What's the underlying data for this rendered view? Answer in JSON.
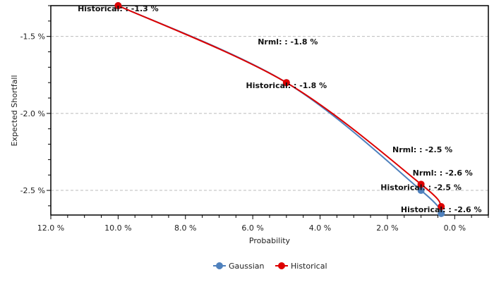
{
  "chart_data": {
    "type": "line",
    "title": "",
    "xlabel": "Probability",
    "ylabel": "Expected Shortfall",
    "xlim": [
      12,
      -1
    ],
    "ylim": [
      -2.66,
      -1.3
    ],
    "x_reversed": true,
    "grid": "horizontal dashed",
    "x_ticks": [
      12,
      10,
      8,
      6,
      4,
      2,
      0
    ],
    "x_tick_labels": [
      "12.0 %",
      "10.0 %",
      "8.0 %",
      "6.0 %",
      "4.0 %",
      "2.0 %",
      "0.0 %"
    ],
    "y_ticks": [
      -1.5,
      -2.0,
      -2.5
    ],
    "y_tick_labels": [
      "-1.5 %",
      "-2.0 %",
      "-2.5 %"
    ],
    "legend_position": "bottom-center",
    "series": [
      {
        "name": "Gaussian",
        "color": "#4f81bd",
        "x": [
          10,
          5,
          1,
          0.4
        ],
        "y": [
          -1.3,
          -1.8,
          -2.5,
          -2.65
        ],
        "labels": [
          "",
          "Nrml: : -1.8 %",
          "Nrml: : -2.5 %",
          "Nrml: : -2.6 %"
        ]
      },
      {
        "name": "Historical",
        "color": "#dd0000",
        "x": [
          10,
          5,
          1,
          0.4
        ],
        "y": [
          -1.3,
          -1.8,
          -2.46,
          -2.605
        ],
        "labels": [
          "Historical: : -1.3 %",
          "Historical: : -1.8 %",
          "Historical: : -2.5 %",
          "Historical: : -2.6 %"
        ]
      }
    ]
  }
}
